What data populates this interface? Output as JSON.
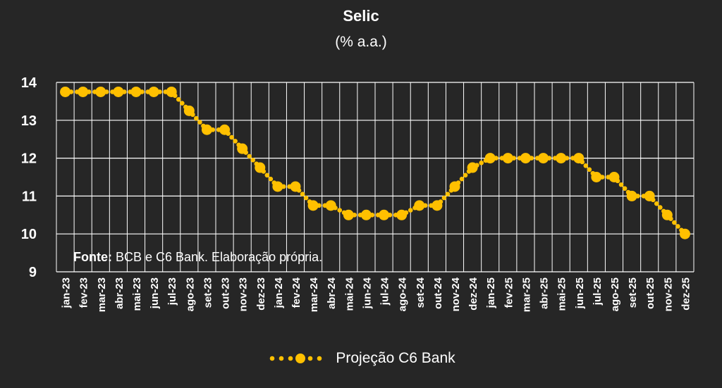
{
  "chart_data": {
    "type": "line",
    "title": "Selic",
    "subtitle": "(% a.a.)",
    "ylim": [
      9,
      14
    ],
    "yticks": [
      9,
      10,
      11,
      12,
      13,
      14
    ],
    "grid": true,
    "legend_position": "bottom",
    "categories": [
      "jan-23",
      "fev-23",
      "mar-23",
      "abr-23",
      "mai-23",
      "jun-23",
      "jul-23",
      "ago-23",
      "set-23",
      "out-23",
      "nov-23",
      "dez-23",
      "jan-24",
      "fev-24",
      "mar-24",
      "abr-24",
      "mai-24",
      "jun-24",
      "jul-24",
      "ago-24",
      "set-24",
      "out-24",
      "nov-24",
      "dez-24",
      "jan-25",
      "fev-25",
      "mar-25",
      "abr-25",
      "mai-25",
      "jun-25",
      "jul-25",
      "ago-25",
      "set-25",
      "out-25",
      "nov-25",
      "dez-25"
    ],
    "series": [
      {
        "name": "Projeção C6 Bank",
        "color": "#FFC000",
        "values": [
          13.75,
          13.75,
          13.75,
          13.75,
          13.75,
          13.75,
          13.75,
          13.25,
          12.75,
          12.75,
          12.25,
          11.75,
          11.25,
          11.25,
          10.75,
          10.75,
          10.5,
          10.5,
          10.5,
          10.5,
          10.75,
          10.75,
          11.25,
          11.75,
          12.0,
          12.0,
          12.0,
          12.0,
          12.0,
          12.0,
          11.5,
          11.5,
          11.0,
          11.0,
          10.5,
          10.0
        ]
      }
    ],
    "source_label": "Fonte:",
    "source_text": " BCB e C6 Bank. Elaboração própria."
  }
}
